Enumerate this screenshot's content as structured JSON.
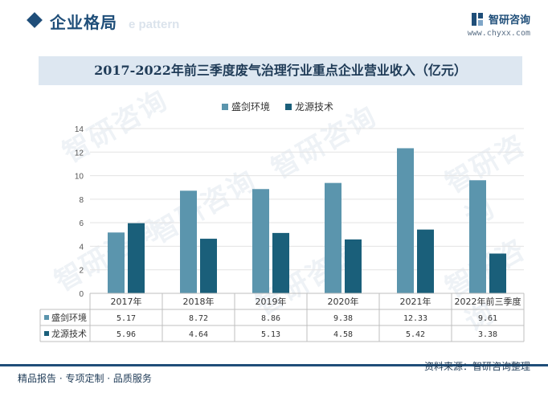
{
  "header": {
    "section_title": "企业格局",
    "ghost_text": "e pattern",
    "brand_name": "智研咨询",
    "brand_url": "www.chyxx.com"
  },
  "watermark": "智研咨询",
  "footer": {
    "left": "精品报告 · 专项定制 · 品质服务",
    "right": "资料来源：智研咨询整理"
  },
  "colors": {
    "series1": "#5b95ad",
    "series2": "#1a5f7a",
    "brand": "#1f4e79"
  },
  "chart_data": {
    "type": "bar",
    "title": "2017-2022年前三季度废气治理行业重点企业营业收入（亿元）",
    "categories": [
      "2017年",
      "2018年",
      "2019年",
      "2020年",
      "2021年",
      "2022年前三季度"
    ],
    "series": [
      {
        "name": "盛剑环境",
        "values": [
          5.17,
          8.72,
          8.86,
          9.38,
          12.33,
          9.61
        ],
        "labels": [
          "5.17",
          "8.72",
          "8.86",
          "9.38",
          "12.33",
          "9.61"
        ]
      },
      {
        "name": "龙源技术",
        "values": [
          5.96,
          4.64,
          5.13,
          4.58,
          5.42,
          3.38
        ],
        "labels": [
          "5.96",
          "4.64",
          "5.13",
          "4.58",
          "5.42",
          "3.38"
        ]
      }
    ],
    "ylim": [
      0,
      14
    ],
    "yticks": [
      0,
      2,
      4,
      6,
      8,
      10,
      12,
      14
    ],
    "grid": true,
    "legend": "top-center",
    "data_table": true
  }
}
